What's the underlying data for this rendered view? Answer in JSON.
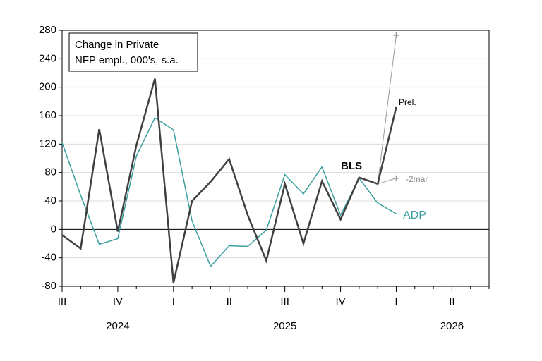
{
  "chart_data": {
    "type": "line",
    "title_lines": [
      "Change in Private",
      "NFP empl., 000's, s.a."
    ],
    "categories": [
      "III",
      null,
      null,
      "IV",
      null,
      null,
      "I",
      null,
      null,
      "II",
      null,
      null,
      "III",
      null,
      null,
      "IV",
      null,
      null,
      "I",
      null,
      null,
      "II",
      null,
      null
    ],
    "years": [
      "2024",
      "2025",
      "2026"
    ],
    "series": [
      {
        "name": "ADP",
        "color": "#3a9e9e",
        "width": 1.5,
        "values": [
          122,
          48,
          -21,
          -13,
          103,
          157,
          140,
          12,
          -52,
          -23,
          -24,
          -1,
          77,
          50,
          88,
          20,
          72,
          37,
          22,
          null,
          null,
          null,
          null,
          null
        ]
      },
      {
        "color": "#999999",
        "width": 1,
        "markers": true,
        "values": [
          null,
          null,
          null,
          null,
          null,
          null,
          null,
          null,
          null,
          null,
          null,
          null,
          null,
          null,
          null,
          null,
          null,
          64,
          273,
          null,
          null,
          null,
          null,
          null
        ]
      },
      {
        "name": "-2mar",
        "color": "#999999",
        "width": 1,
        "markers": true,
        "values": [
          null,
          null,
          null,
          null,
          null,
          null,
          null,
          null,
          null,
          null,
          null,
          null,
          null,
          null,
          null,
          null,
          null,
          64,
          72,
          null,
          null,
          null,
          null,
          null
        ]
      },
      {
        "name": "BLS",
        "color": "#404040",
        "width": 2.5,
        "values": [
          -8,
          -27,
          141,
          -3,
          118,
          212,
          -75,
          40,
          67,
          99,
          20,
          -44,
          64,
          -20,
          68,
          14,
          73,
          64,
          172,
          null,
          null,
          null,
          null,
          null
        ]
      }
    ],
    "annotations": [
      "Prel."
    ],
    "ylim": [
      -80,
      280
    ],
    "yticks": [
      -80,
      -40,
      0,
      40,
      80,
      120,
      160,
      200,
      240,
      280
    ],
    "grid": true
  }
}
